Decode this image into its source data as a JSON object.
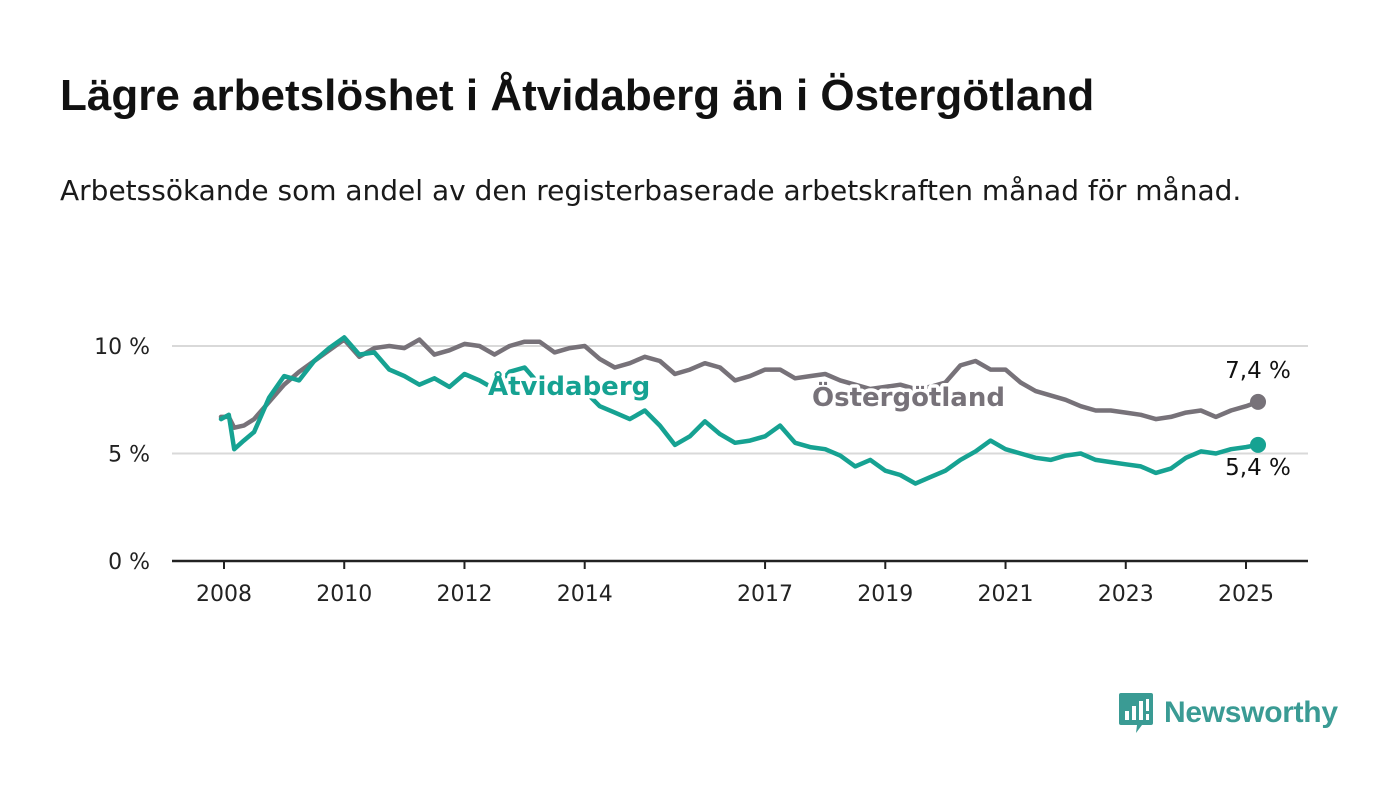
{
  "title": "Lägre arbetslöshet i Åtvidaberg än i Östergötland",
  "subtitle": "Arbetssökande som andel av den registerbaserade arbetskraften månad för månad.",
  "brand": {
    "name": "Newsworthy",
    "color": "#3a9b94"
  },
  "chart_data": {
    "type": "line",
    "title": "Lägre arbetslöshet i Åtvidaberg än i Östergötland",
    "subtitle": "Arbetssökande som andel av den registerbaserade arbetskraften månad för månad.",
    "xlabel": "",
    "ylabel": "",
    "xlim": [
      2007.95,
      2025.2
    ],
    "ylim": [
      0,
      10
    ],
    "x_ticks": [
      2008,
      2010,
      2012,
      2014,
      2017,
      2019,
      2021,
      2023,
      2025
    ],
    "y_ticks": [
      {
        "value": 0,
        "label": "0 %"
      },
      {
        "value": 5,
        "label": "5 %"
      },
      {
        "value": 10,
        "label": "10 %"
      }
    ],
    "grid": "horizontal",
    "series": [
      {
        "name": "Östergötland",
        "color": "#777279",
        "end_label": "7,4 %",
        "x": [
          2007.95,
          2008.08,
          2008.17,
          2008.33,
          2008.5,
          2008.75,
          2009.0,
          2009.25,
          2009.5,
          2009.75,
          2010.0,
          2010.25,
          2010.5,
          2010.75,
          2011.0,
          2011.25,
          2011.5,
          2011.75,
          2012.0,
          2012.25,
          2012.5,
          2012.75,
          2013.0,
          2013.25,
          2013.5,
          2013.75,
          2014.0,
          2014.25,
          2014.5,
          2014.75,
          2015.0,
          2015.25,
          2015.5,
          2015.75,
          2016.0,
          2016.25,
          2016.5,
          2016.75,
          2017.0,
          2017.25,
          2017.5,
          2017.75,
          2018.0,
          2018.25,
          2018.5,
          2018.75,
          2019.0,
          2019.25,
          2019.5,
          2019.75,
          2020.0,
          2020.25,
          2020.5,
          2020.75,
          2021.0,
          2021.25,
          2021.5,
          2021.75,
          2022.0,
          2022.25,
          2022.5,
          2022.75,
          2023.0,
          2023.25,
          2023.5,
          2023.75,
          2024.0,
          2024.25,
          2024.5,
          2024.75,
          2025.0,
          2025.2
        ],
        "y": [
          6.7,
          6.7,
          6.2,
          6.3,
          6.6,
          7.4,
          8.2,
          8.8,
          9.3,
          9.8,
          10.3,
          9.5,
          9.9,
          10.0,
          9.9,
          10.3,
          9.6,
          9.8,
          10.1,
          10.0,
          9.6,
          10.0,
          10.2,
          10.2,
          9.7,
          9.9,
          10.0,
          9.4,
          9.0,
          9.2,
          9.5,
          9.3,
          8.7,
          8.9,
          9.2,
          9.0,
          8.4,
          8.6,
          8.9,
          8.9,
          8.5,
          8.6,
          8.7,
          8.4,
          8.2,
          8.0,
          8.1,
          8.2,
          8.0,
          8.1,
          8.3,
          9.1,
          9.3,
          8.9,
          8.9,
          8.3,
          7.9,
          7.7,
          7.5,
          7.2,
          7.0,
          7.0,
          6.9,
          6.8,
          6.6,
          6.7,
          6.9,
          7.0,
          6.7,
          7.0,
          7.2,
          7.4
        ]
      },
      {
        "name": "Åtvidaberg",
        "color": "#16a292",
        "end_label": "5,4 %",
        "x": [
          2007.95,
          2008.08,
          2008.17,
          2008.33,
          2008.5,
          2008.75,
          2009.0,
          2009.25,
          2009.5,
          2009.75,
          2010.0,
          2010.25,
          2010.5,
          2010.75,
          2011.0,
          2011.25,
          2011.5,
          2011.75,
          2012.0,
          2012.25,
          2012.5,
          2012.75,
          2013.0,
          2013.25,
          2013.5,
          2013.75,
          2014.0,
          2014.25,
          2014.5,
          2014.75,
          2015.0,
          2015.25,
          2015.5,
          2015.75,
          2016.0,
          2016.25,
          2016.5,
          2016.75,
          2017.0,
          2017.25,
          2017.5,
          2017.75,
          2018.0,
          2018.25,
          2018.5,
          2018.75,
          2019.0,
          2019.25,
          2019.5,
          2019.75,
          2020.0,
          2020.25,
          2020.5,
          2020.75,
          2021.0,
          2021.25,
          2021.5,
          2021.75,
          2022.0,
          2022.25,
          2022.5,
          2022.75,
          2023.0,
          2023.25,
          2023.5,
          2023.75,
          2024.0,
          2024.25,
          2024.5,
          2024.75,
          2025.0,
          2025.2
        ],
        "y": [
          6.6,
          6.8,
          5.2,
          5.6,
          6.0,
          7.6,
          8.6,
          8.4,
          9.3,
          9.9,
          10.4,
          9.6,
          9.7,
          8.9,
          8.6,
          8.2,
          8.5,
          8.1,
          8.7,
          8.4,
          8.0,
          8.8,
          9.0,
          8.2,
          7.8,
          8.0,
          7.9,
          7.2,
          6.9,
          6.6,
          7.0,
          6.3,
          5.4,
          5.8,
          6.5,
          5.9,
          5.5,
          5.6,
          5.8,
          6.3,
          5.5,
          5.3,
          5.2,
          4.9,
          4.4,
          4.7,
          4.2,
          4.0,
          3.6,
          3.9,
          4.2,
          4.7,
          5.1,
          5.6,
          5.2,
          5.0,
          4.8,
          4.7,
          4.9,
          5.0,
          4.7,
          4.6,
          4.5,
          4.4,
          4.1,
          4.3,
          4.8,
          5.1,
          5.0,
          5.2,
          5.3,
          5.4
        ]
      }
    ]
  }
}
